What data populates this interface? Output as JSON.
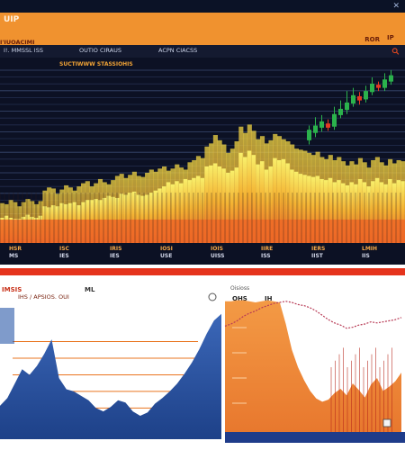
{
  "header": {
    "title": "UIP",
    "ticker_line": "I'IUOACIMI",
    "action_label": "ROR",
    "account_label": "IP"
  },
  "toolbar": {
    "items": [
      "I!. MMSSL ISS",
      "OUTIO CIRAUS",
      "ACPN CIACSS"
    ],
    "panel_caption": "SUCTIWWW STASSIOHIS"
  },
  "main_chart": {
    "x_tick_labels": [
      "HSR\nMS",
      "ISC\nIES",
      "IRIS\nIES",
      "IOSI\nUSE",
      "IOIS\nUISS",
      "IIRE\nISS",
      "IERS\nIIST",
      "LMIH\nIIS"
    ],
    "series": {
      "bars": [
        84,
        86,
        84,
        83,
        83,
        85,
        87,
        85,
        84,
        86,
        95,
        94,
        96,
        95,
        98,
        97,
        98,
        99,
        96,
        99,
        101,
        101,
        102,
        101,
        103,
        105,
        104,
        103,
        107,
        106,
        108,
        109,
        106,
        105,
        106,
        108,
        110,
        112,
        114,
        118,
        116,
        119,
        117,
        121,
        120,
        122,
        124,
        122,
        133,
        134,
        136,
        133,
        131,
        127,
        129,
        132,
        146,
        142,
        148,
        144,
        135,
        138,
        130,
        133,
        141,
        139,
        140,
        136,
        130,
        128,
        126,
        125,
        124,
        123,
        124,
        121,
        120,
        122,
        118,
        120,
        117,
        115,
        118,
        116,
        121,
        118,
        114,
        119,
        122,
        118,
        116,
        121,
        117,
        120,
        119
      ],
      "back_bars": [
        98,
        97,
        101,
        99,
        95,
        99,
        102,
        100,
        97,
        100,
        110,
        113,
        112,
        107,
        111,
        115,
        113,
        110,
        114,
        117,
        119,
        114,
        117,
        121,
        118,
        116,
        120,
        124,
        126,
        122,
        125,
        128,
        124,
        123,
        127,
        130,
        128,
        131,
        133,
        129,
        131,
        135,
        132,
        130,
        137,
        139,
        143,
        141,
        152,
        155,
        163,
        158,
        154,
        146,
        150,
        157,
        171,
        165,
        173,
        167,
        159,
        162,
        155,
        158,
        164,
        162,
        159,
        157,
        154,
        150,
        149,
        148,
        146,
        144,
        147,
        142,
        140,
        144,
        139,
        142,
        138,
        134,
        138,
        135,
        141,
        137,
        132,
        139,
        142,
        137,
        134,
        140,
        136,
        139,
        138
      ],
      "candles": [
        {
          "o": 158,
          "c": 168,
          "h": 172,
          "l": 154
        },
        {
          "o": 165,
          "c": 172,
          "h": 180,
          "l": 161
        },
        {
          "o": 170,
          "c": 176,
          "h": 182,
          "l": 166
        },
        {
          "o": 174,
          "c": 170,
          "h": 178,
          "l": 167
        },
        {
          "o": 171,
          "c": 183,
          "h": 190,
          "l": 168
        },
        {
          "o": 182,
          "c": 188,
          "h": 196,
          "l": 179
        },
        {
          "o": 187,
          "c": 194,
          "h": 205,
          "l": 183
        },
        {
          "o": 193,
          "c": 201,
          "h": 208,
          "l": 190
        },
        {
          "o": 200,
          "c": 196,
          "h": 204,
          "l": 192
        },
        {
          "o": 197,
          "c": 205,
          "h": 210,
          "l": 194
        },
        {
          "o": 204,
          "c": 212,
          "h": 218,
          "l": 201
        },
        {
          "o": 211,
          "c": 208,
          "h": 214,
          "l": 205
        },
        {
          "o": 208,
          "c": 216,
          "h": 222,
          "l": 205
        },
        {
          "o": 214,
          "c": 220,
          "h": 225,
          "l": 211
        }
      ],
      "yrange": [
        60,
        230
      ]
    }
  },
  "panel_left": {
    "title": "IMSIS",
    "subtitle": "IHS / APSIOS. OUI",
    "badge_label": "ML",
    "corner_icon": "refresh-icon",
    "y_labels": [
      "",
      "",
      ""
    ],
    "area_values": [
      35,
      42,
      55,
      68,
      63,
      71,
      82,
      95,
      60,
      50,
      48,
      44,
      40,
      33,
      30,
      34,
      40,
      38,
      30,
      26,
      29,
      37,
      42,
      48,
      55,
      64,
      74,
      86,
      100,
      112,
      118
    ],
    "yrange": [
      0,
      130
    ],
    "reference_lines": [
      93,
      78,
      63,
      48,
      33,
      18
    ]
  },
  "panel_right": {
    "title": "Oisioss",
    "subtitle": "OHS",
    "badge_label": "IH",
    "area_values": [
      121,
      121,
      122,
      122,
      121,
      120,
      121,
      122,
      121,
      120,
      100,
      76,
      60,
      48,
      38,
      31,
      28,
      30,
      36,
      40,
      34,
      45,
      39,
      32,
      44,
      50,
      38,
      42,
      47,
      55
    ],
    "line_values": [
      98,
      100,
      103,
      107,
      110,
      112,
      115,
      117,
      119,
      120,
      121,
      120,
      118,
      117,
      115,
      112,
      108,
      104,
      101,
      99,
      96,
      97,
      99,
      100,
      102,
      101,
      102,
      103,
      104,
      106
    ],
    "yrange": [
      0,
      130
    ],
    "axis_labels": [
      "",
      "",
      "",
      ""
    ]
  },
  "colors": {
    "header": "#f0922f",
    "bar_orange": "#f06a2a",
    "bar_yellow": "#f6d23c",
    "candle_up": "#2bb24c",
    "candle_down": "#e43a22",
    "panel_blue": "#254f99",
    "panel_orange": "#ef8a3a"
  }
}
